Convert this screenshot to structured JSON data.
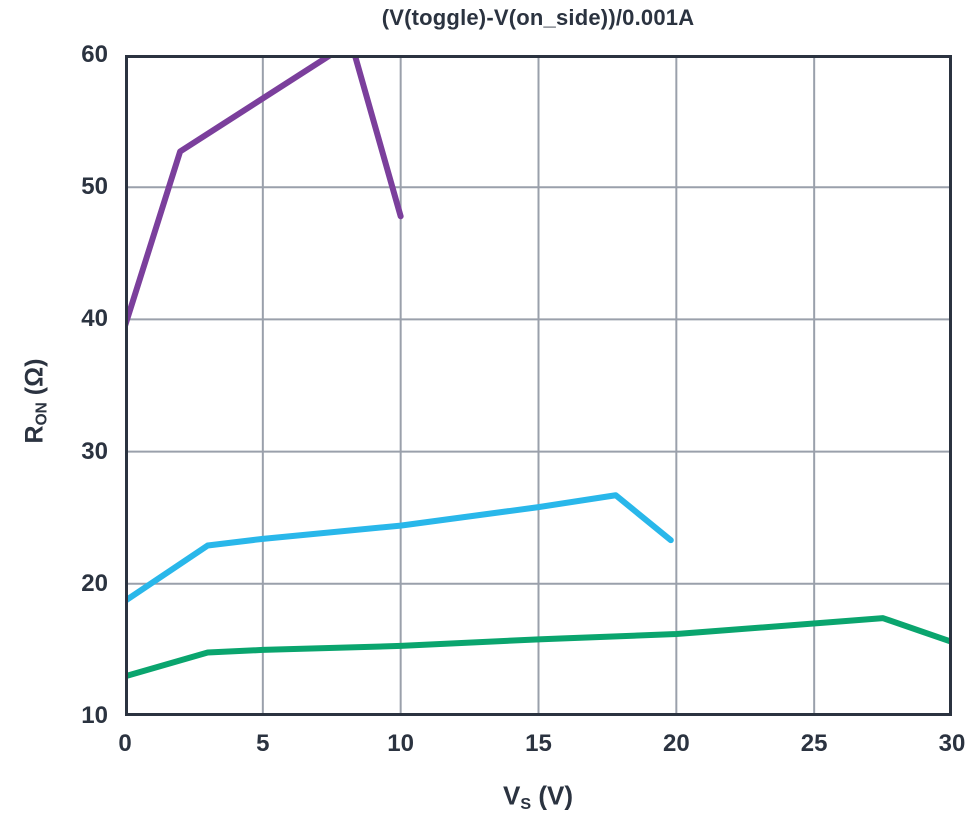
{
  "title": "(V(toggle)-V(on_side))/0.001A",
  "axes": {
    "y_main": "R",
    "y_sub": "ON",
    "y_unit": " (Ω)",
    "x_main": "V",
    "x_sub": "S",
    "x_unit": " (V)"
  },
  "colors": {
    "axis": "#2b3340",
    "grid": "#9aa0ab",
    "background": "#ffffff",
    "purple_series": "#7b3f9c",
    "cyan_series": "#29b7ea",
    "green_series": "#0aa56e"
  },
  "chart_data": {
    "type": "line",
    "title": "(V(toggle)-V(on_side))/0.001A",
    "xlabel": "VS (V)",
    "ylabel": "RON (Ω)",
    "xlim": [
      0,
      30
    ],
    "ylim": [
      10,
      60
    ],
    "xticks": [
      0,
      5,
      10,
      15,
      20,
      25,
      30
    ],
    "yticks": [
      10,
      20,
      30,
      40,
      50,
      60
    ],
    "grid": true,
    "legend": false,
    "clip_to_axes": true,
    "series": [
      {
        "name": "purple-trace",
        "color": "#7b3f9c",
        "points": [
          [
            0,
            39.5
          ],
          [
            2,
            52.7
          ],
          [
            8.2,
            61.0
          ],
          [
            10,
            47.8
          ]
        ]
      },
      {
        "name": "cyan-trace",
        "color": "#29b7ea",
        "points": [
          [
            0,
            18.7
          ],
          [
            3,
            22.9
          ],
          [
            5,
            23.4
          ],
          [
            10,
            24.4
          ],
          [
            15,
            25.8
          ],
          [
            17.8,
            26.7
          ],
          [
            19.8,
            23.3
          ]
        ]
      },
      {
        "name": "green-trace",
        "color": "#0aa56e",
        "points": [
          [
            0,
            13.0
          ],
          [
            3,
            14.8
          ],
          [
            5,
            15.0
          ],
          [
            10,
            15.3
          ],
          [
            15,
            15.8
          ],
          [
            20,
            16.2
          ],
          [
            27.5,
            17.4
          ],
          [
            30,
            15.6
          ]
        ]
      }
    ]
  }
}
